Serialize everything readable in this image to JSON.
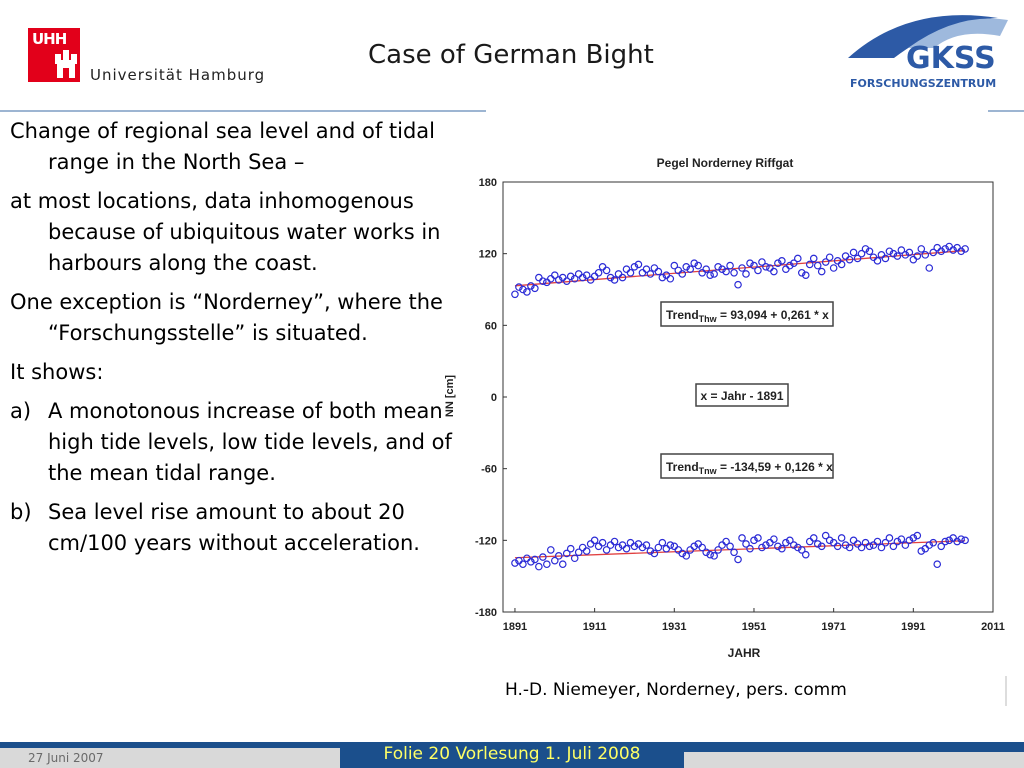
{
  "header": {
    "uhh_letters": "UHH",
    "university": "Universität Hamburg",
    "title": "Case of German Bight",
    "gkss_text": "GKSS",
    "gkss_sub": "FORSCHUNGSZENTRUM"
  },
  "bullets": [
    {
      "label": "",
      "text": "Change of regional sea level and of tidal range in the North Sea –"
    },
    {
      "label": "",
      "text": "at most locations, data inhomogenous because of ubiquitous water works in harbours along the coast."
    },
    {
      "label": "",
      "text": "One exception is “Norderney”, where the “Forschungsstelle” is situated."
    },
    {
      "label": "",
      "text": "It shows:"
    },
    {
      "label": "a)",
      "text": "A monotonous increase of both mean high tide levels, low tide levels, and of the mean tidal range."
    },
    {
      "label": "b)",
      "text": "Sea level rise amount to about 20 cm/100 years without acceleration."
    }
  ],
  "credit": "H.-D. Niemeyer, Norderney, pers. comm",
  "footer": {
    "date": "27 Juni 2007",
    "center": "Folie 20 Vorlesung 1. Juli 2008"
  },
  "colors": {
    "marker": "#2b2bd6",
    "trend": "#e04040",
    "footer_bg": "#1b4f8c",
    "footer_text": "#ffff66"
  },
  "chart_data": {
    "type": "scatter",
    "title": "Pegel Norderney Riffgat",
    "xlabel": "JAHR",
    "ylabel": "NN [cm]",
    "xlim": [
      1888,
      2011
    ],
    "ylim": [
      -180,
      180
    ],
    "xticks": [
      1891,
      1911,
      1931,
      1951,
      1971,
      1991,
      2011
    ],
    "yticks": [
      180,
      120,
      60,
      0,
      -60,
      -120,
      -180
    ],
    "annotations": {
      "thw_pre": "Trend",
      "thw_sub": "Thw",
      "thw_post": " = 93,094 + 0,261 * x",
      "tnw_pre": "Trend",
      "tnw_sub": "Tnw",
      "tnw_post": " = -134,59 + 0,126 * x",
      "xdef": "x = Jahr - 1891"
    },
    "series": [
      {
        "name": "Thw",
        "x": [
          1891,
          1892,
          1893,
          1894,
          1895,
          1896,
          1897,
          1898,
          1899,
          1900,
          1901,
          1902,
          1903,
          1904,
          1905,
          1906,
          1907,
          1908,
          1909,
          1910,
          1911,
          1912,
          1913,
          1914,
          1915,
          1916,
          1917,
          1918,
          1919,
          1920,
          1921,
          1922,
          1923,
          1924,
          1925,
          1926,
          1927,
          1928,
          1929,
          1930,
          1931,
          1932,
          1933,
          1934,
          1935,
          1936,
          1937,
          1938,
          1939,
          1940,
          1941,
          1942,
          1943,
          1944,
          1945,
          1946,
          1947,
          1948,
          1949,
          1950,
          1951,
          1952,
          1953,
          1954,
          1955,
          1956,
          1957,
          1958,
          1959,
          1960,
          1961,
          1962,
          1963,
          1964,
          1965,
          1966,
          1967,
          1968,
          1969,
          1970,
          1971,
          1972,
          1973,
          1974,
          1975,
          1976,
          1977,
          1978,
          1979,
          1980,
          1981,
          1982,
          1983,
          1984,
          1985,
          1986,
          1987,
          1988,
          1989,
          1990,
          1991,
          1992,
          1993,
          1994,
          1995,
          1996,
          1997,
          1998,
          1999,
          2000,
          2001,
          2002,
          2003,
          2004
        ],
        "y": [
          86,
          92,
          90,
          88,
          93,
          91,
          100,
          97,
          96,
          99,
          102,
          98,
          100,
          97,
          101,
          99,
          103,
          100,
          102,
          98,
          101,
          104,
          109,
          106,
          100,
          98,
          103,
          100,
          107,
          104,
          109,
          111,
          104,
          107,
          103,
          108,
          105,
          100,
          102,
          99,
          110,
          106,
          103,
          109,
          107,
          112,
          110,
          104,
          107,
          102,
          103,
          109,
          107,
          105,
          110,
          104,
          94,
          108,
          103,
          112,
          110,
          106,
          113,
          109,
          108,
          105,
          112,
          114,
          107,
          110,
          112,
          116,
          104,
          102,
          111,
          116,
          110,
          105,
          113,
          117,
          108,
          114,
          111,
          118,
          115,
          121,
          116,
          120,
          124,
          122,
          117,
          114,
          119,
          116,
          122,
          120,
          118,
          123,
          119,
          121,
          115,
          118,
          124,
          119,
          108,
          121,
          125,
          122,
          124,
          126,
          123,
          125,
          122,
          124
        ]
      },
      {
        "name": "Tnw",
        "x": [
          1891,
          1892,
          1893,
          1894,
          1895,
          1896,
          1897,
          1898,
          1899,
          1900,
          1901,
          1902,
          1903,
          1904,
          1905,
          1906,
          1907,
          1908,
          1909,
          1910,
          1911,
          1912,
          1913,
          1914,
          1915,
          1916,
          1917,
          1918,
          1919,
          1920,
          1921,
          1922,
          1923,
          1924,
          1925,
          1926,
          1927,
          1928,
          1929,
          1930,
          1931,
          1932,
          1933,
          1934,
          1935,
          1936,
          1937,
          1938,
          1939,
          1940,
          1941,
          1942,
          1943,
          1944,
          1945,
          1946,
          1947,
          1948,
          1949,
          1950,
          1951,
          1952,
          1953,
          1954,
          1955,
          1956,
          1957,
          1958,
          1959,
          1960,
          1961,
          1962,
          1963,
          1964,
          1965,
          1966,
          1967,
          1968,
          1969,
          1970,
          1971,
          1972,
          1973,
          1974,
          1975,
          1976,
          1977,
          1978,
          1979,
          1980,
          1981,
          1982,
          1983,
          1984,
          1985,
          1986,
          1987,
          1988,
          1989,
          1990,
          1991,
          1992,
          1993,
          1994,
          1995,
          1996,
          1997,
          1998,
          1999,
          2000,
          2001,
          2002,
          2003,
          2004
        ],
        "y": [
          -139,
          -137,
          -140,
          -135,
          -138,
          -136,
          -142,
          -134,
          -140,
          -128,
          -137,
          -133,
          -140,
          -131,
          -127,
          -135,
          -130,
          -126,
          -129,
          -123,
          -120,
          -125,
          -122,
          -128,
          -124,
          -121,
          -126,
          -124,
          -127,
          -122,
          -125,
          -123,
          -126,
          -124,
          -129,
          -131,
          -126,
          -122,
          -127,
          -124,
          -125,
          -128,
          -131,
          -133,
          -128,
          -125,
          -123,
          -126,
          -130,
          -132,
          -133,
          -128,
          -124,
          -121,
          -125,
          -130,
          -136,
          -118,
          -123,
          -127,
          -120,
          -118,
          -126,
          -124,
          -122,
          -119,
          -125,
          -127,
          -122,
          -120,
          -124,
          -126,
          -128,
          -132,
          -121,
          -118,
          -123,
          -125,
          -116,
          -120,
          -122,
          -125,
          -118,
          -124,
          -126,
          -120,
          -123,
          -126,
          -122,
          -125,
          -124,
          -121,
          -126,
          -122,
          -118,
          -125,
          -121,
          -119,
          -124,
          -120,
          -118,
          -116,
          -129,
          -127,
          -124,
          -122,
          -140,
          -125,
          -121,
          -120,
          -118,
          -121,
          -119,
          -120
        ]
      },
      {
        "name": "Thw trend",
        "x": [
          1891,
          2004
        ],
        "y": [
          93.094,
          122.587
        ]
      },
      {
        "name": "Tnw trend",
        "x": [
          1891,
          2004
        ],
        "y": [
          -134.59,
          -120.352
        ]
      }
    ]
  }
}
